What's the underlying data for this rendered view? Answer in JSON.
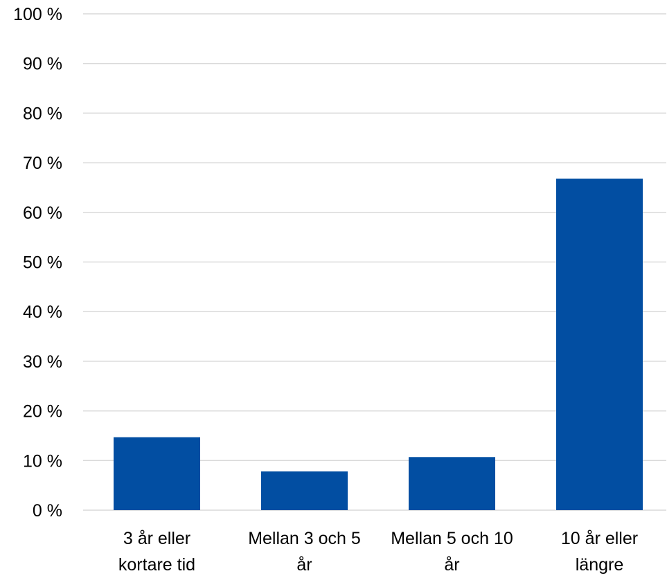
{
  "chart_data": {
    "type": "bar",
    "title": "",
    "xlabel": "",
    "ylabel": "",
    "categories": [
      [
        "3 år eller",
        "kortare tid"
      ],
      [
        "Mellan 3 och 5",
        "år"
      ],
      [
        "Mellan 5 och 10",
        "år"
      ],
      [
        "10 år eller",
        "längre"
      ]
    ],
    "values": [
      14.7,
      7.8,
      10.7,
      66.8
    ],
    "ylim": [
      0,
      100
    ],
    "yticks": [
      0,
      10,
      20,
      30,
      40,
      50,
      60,
      70,
      80,
      90,
      100
    ],
    "ytick_format": "{v} %",
    "grid": true,
    "legend": "none",
    "bar_color": "#024ea2",
    "grid_color": "#d9d9d9"
  }
}
